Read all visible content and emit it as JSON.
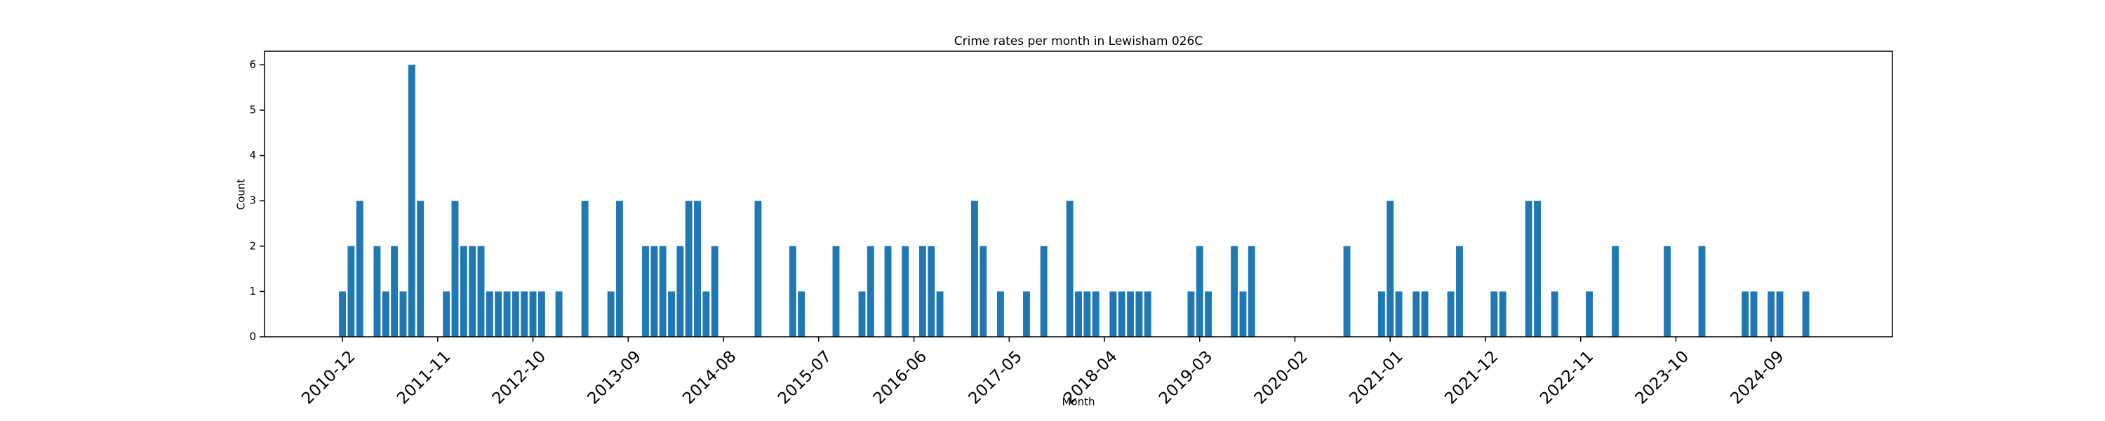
{
  "chart_data": {
    "type": "bar",
    "title": "Crime rates per month in Lewisham 026C",
    "x_label": "Month",
    "y_label": "Count",
    "color": "#1f77b4",
    "x": [
      "2010-12",
      "2011-01",
      "2011-02",
      "2011-04",
      "2011-05",
      "2011-06",
      "2011-07",
      "2011-08",
      "2011-09",
      "2011-12",
      "2012-01",
      "2012-02",
      "2012-03",
      "2012-04",
      "2012-05",
      "2012-06",
      "2012-07",
      "2012-08",
      "2012-09",
      "2012-10",
      "2012-11",
      "2013-01",
      "2013-04",
      "2013-07",
      "2013-08",
      "2013-11",
      "2013-12",
      "2014-01",
      "2014-02",
      "2014-03",
      "2014-04",
      "2014-05",
      "2014-06",
      "2014-07",
      "2014-12",
      "2015-04",
      "2015-05",
      "2015-09",
      "2015-12",
      "2016-01",
      "2016-03",
      "2016-05",
      "2016-07",
      "2016-08",
      "2016-09",
      "2017-01",
      "2017-02",
      "2017-04",
      "2017-07",
      "2017-09",
      "2017-12",
      "2018-01",
      "2018-02",
      "2018-03",
      "2018-05",
      "2018-06",
      "2018-07",
      "2018-08",
      "2018-09",
      "2019-02",
      "2019-03",
      "2019-04",
      "2019-07",
      "2019-08",
      "2019-09",
      "2020-08",
      "2020-12",
      "2021-01",
      "2021-02",
      "2021-04",
      "2021-05",
      "2021-08",
      "2021-09",
      "2022-01",
      "2022-02",
      "2022-05",
      "2022-06",
      "2022-08",
      "2022-12",
      "2023-03",
      "2023-09",
      "2024-01",
      "2024-06",
      "2024-07",
      "2024-09",
      "2024-10",
      "2025-01"
    ],
    "values": [
      1,
      2,
      3,
      2,
      1,
      2,
      1,
      6,
      3,
      1,
      3,
      2,
      2,
      2,
      1,
      1,
      1,
      1,
      1,
      1,
      1,
      1,
      3,
      1,
      3,
      2,
      2,
      2,
      1,
      2,
      3,
      3,
      1,
      2,
      3,
      2,
      1,
      2,
      1,
      2,
      2,
      2,
      2,
      2,
      1,
      3,
      2,
      1,
      1,
      2,
      3,
      1,
      1,
      1,
      1,
      1,
      1,
      1,
      1,
      1,
      2,
      1,
      2,
      1,
      2,
      2,
      1,
      3,
      1,
      1,
      1,
      1,
      2,
      1,
      1,
      3,
      3,
      1,
      1,
      2,
      2,
      2,
      1,
      1,
      1,
      1,
      1
    ],
    "xlim": [
      "2010-03",
      "2025-11"
    ],
    "xticks": [
      "2010-12",
      "2011-11",
      "2012-10",
      "2013-09",
      "2014-08",
      "2015-07",
      "2016-06",
      "2017-05",
      "2018-04",
      "2019-03",
      "2020-02",
      "2021-01",
      "2021-12",
      "2022-11",
      "2023-10",
      "2024-09"
    ],
    "ylim": [
      0,
      6.3
    ],
    "yticks": [
      0,
      1,
      2,
      3,
      4,
      5,
      6
    ]
  }
}
